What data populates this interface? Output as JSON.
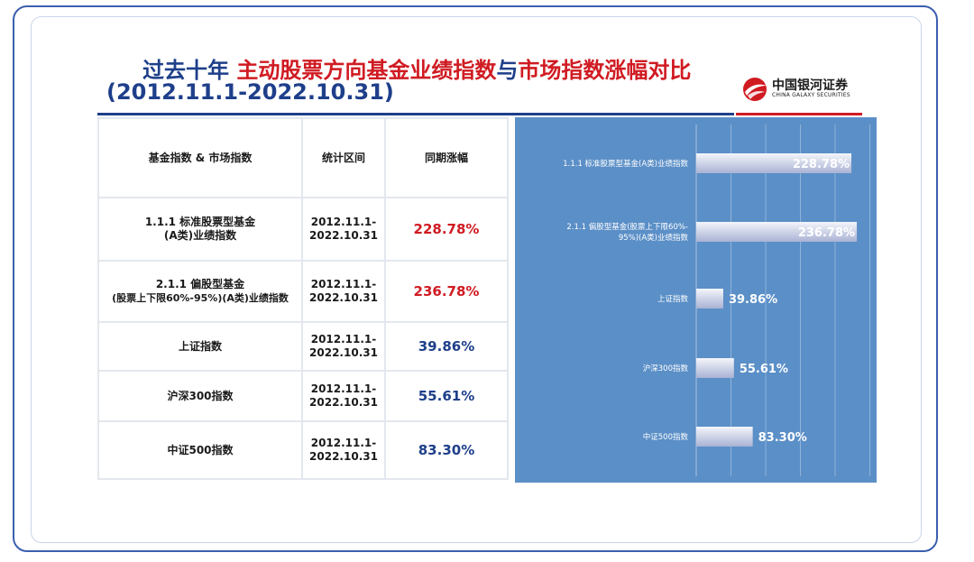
{
  "title": {
    "part1": "过去十年",
    "part2": "主动股票方向基金业绩指数",
    "part3": "与",
    "part4": "市场指数涨幅对比",
    "period": "(2012.11.1-2022.10.31)"
  },
  "logo": {
    "cn": "中国银河证券",
    "en": "CHINA GALAXY SECURITIES"
  },
  "table": {
    "headers": [
      "基金指数 & 市场指数",
      "统计区间",
      "同期涨幅"
    ],
    "rows": [
      {
        "name_line1": "1.1.1 标准股票型基金",
        "name_line2": "(A类)业绩指数",
        "period_line1": "2012.11.1-",
        "period_line2": "2022.10.31",
        "change": "228.78%",
        "color": "red"
      },
      {
        "name_line1": "2.1.1 偏股型基金",
        "name_line2": "(股票上下限60%-95%)(A类)业绩指数",
        "period_line1": "2012.11.1-",
        "period_line2": "2022.10.31",
        "change": "236.78%",
        "color": "red"
      },
      {
        "name_line1": "上证指数",
        "name_line2": "",
        "period_line1": "2012.11.1-",
        "period_line2": "2022.10.31",
        "change": "39.86%",
        "color": "blue"
      },
      {
        "name_line1": "沪深300指数",
        "name_line2": "",
        "period_line1": "2012.11.1-",
        "period_line2": "2022.10.31",
        "change": "55.61%",
        "color": "blue"
      },
      {
        "name_line1": "中证500指数",
        "name_line2": "",
        "period_line1": "2012.11.1-",
        "period_line2": "2022.10.31",
        "change": "83.30%",
        "color": "blue"
      }
    ]
  },
  "chart_data": {
    "type": "bar",
    "orientation": "horizontal",
    "categories": [
      [
        "1.1.1 标准股票型基金(A类)业绩指数"
      ],
      [
        "2.1.1 偏股型基金(股票上下限60%-",
        "95%)(A类)业绩指数"
      ],
      [
        "上证指数"
      ],
      [
        "沪深300指数"
      ],
      [
        "中证500指数"
      ]
    ],
    "values": [
      228.78,
      236.78,
      39.86,
      55.61,
      83.3
    ],
    "value_labels": [
      "228.78%",
      "236.78%",
      "39.86%",
      "55.61%",
      "83.30%"
    ],
    "xlim": [
      0,
      250
    ],
    "grid": true,
    "colors": {
      "panel": "#5b8fc7",
      "bar_light": "#f2f4fa",
      "bar_dark": "#a9b2d4"
    }
  },
  "colors": {
    "title_blue": "#1e3f8a",
    "title_red": "#d01b22"
  }
}
